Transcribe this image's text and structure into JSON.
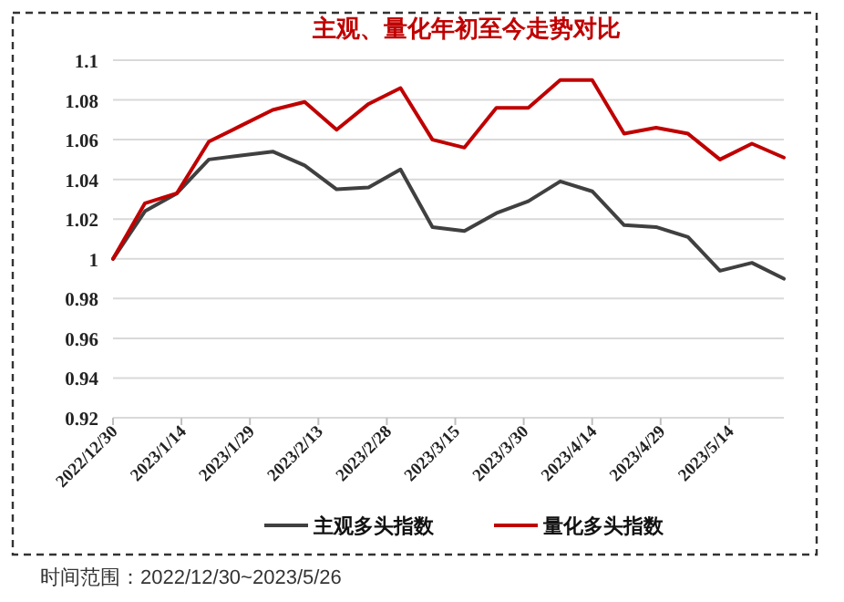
{
  "chart_data": {
    "type": "line",
    "title": "主观、量化年初至今走势对比",
    "x": [
      "2022-12-30",
      "2023-01-06",
      "2023-01-13",
      "2023-01-20",
      "2023-01-27",
      "2023-02-03",
      "2023-02-10",
      "2023-02-17",
      "2023-02-24",
      "2023-03-03",
      "2023-03-10",
      "2023-03-17",
      "2023-03-24",
      "2023-03-31",
      "2023-04-07",
      "2023-04-14",
      "2023-04-21",
      "2023-04-28",
      "2023-05-05",
      "2023-05-12",
      "2023-05-19",
      "2023-05-26"
    ],
    "series": [
      {
        "name": "主观多头指数",
        "color": "#404040",
        "values": [
          1.0,
          1.024,
          1.033,
          1.05,
          1.052,
          1.054,
          1.047,
          1.035,
          1.036,
          1.045,
          1.016,
          1.014,
          1.023,
          1.029,
          1.039,
          1.034,
          1.017,
          1.016,
          1.011,
          0.994,
          0.998,
          0.99
        ]
      },
      {
        "name": "量化多头指数",
        "color": "#c00000",
        "values": [
          1.0,
          1.028,
          1.033,
          1.059,
          1.067,
          1.075,
          1.079,
          1.065,
          1.078,
          1.086,
          1.06,
          1.056,
          1.076,
          1.076,
          1.09,
          1.09,
          1.063,
          1.066,
          1.063,
          1.05,
          1.058,
          1.051
        ]
      }
    ],
    "xlim": [
      "2022-12-30",
      "2023-05-26"
    ],
    "xticks": [
      {
        "value": "2022-12-30",
        "label": "2022/12/30"
      },
      {
        "value": "2023-01-14",
        "label": "2023/1/14"
      },
      {
        "value": "2023-01-29",
        "label": "2023/1/29"
      },
      {
        "value": "2023-02-13",
        "label": "2023/2/13"
      },
      {
        "value": "2023-02-28",
        "label": "2023/2/28"
      },
      {
        "value": "2023-03-15",
        "label": "2023/3/15"
      },
      {
        "value": "2023-03-30",
        "label": "2023/3/30"
      },
      {
        "value": "2023-04-14",
        "label": "2023/4/14"
      },
      {
        "value": "2023-04-29",
        "label": "2023/4/29"
      },
      {
        "value": "2023-05-14",
        "label": "2023/5/14"
      }
    ],
    "ylim": [
      0.92,
      1.1
    ],
    "yticks": [
      0.92,
      0.94,
      0.96,
      0.98,
      1,
      1.02,
      1.04,
      1.06,
      1.08,
      1.1
    ],
    "grid": "y",
    "legend": "bottom",
    "marker": "none",
    "line_style": "solid",
    "annotations": [
      "时间范围：2022/12/30~2023/5/26"
    ]
  }
}
